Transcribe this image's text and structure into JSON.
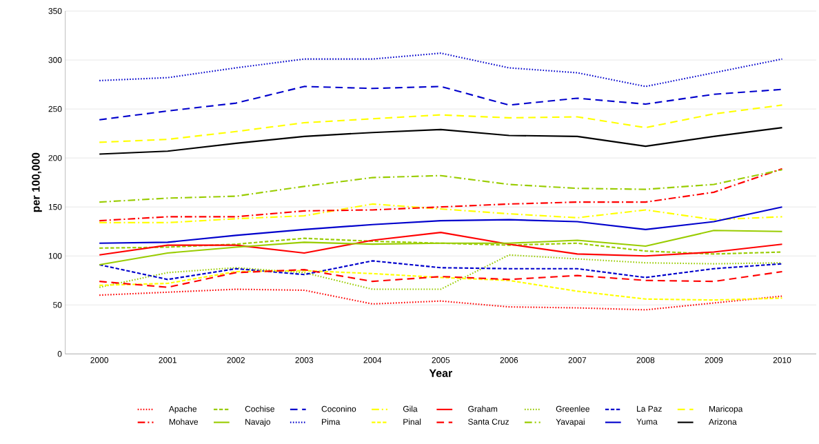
{
  "chart_data": {
    "type": "line",
    "xlabel": "Year",
    "ylabel": "per 100,000",
    "categories": [
      "2000",
      "2001",
      "2002",
      "2003",
      "2004",
      "2005",
      "2006",
      "2007",
      "2008",
      "2009",
      "2010"
    ],
    "ylim": [
      0,
      350
    ],
    "yticks": [
      0,
      50,
      100,
      150,
      200,
      250,
      300,
      350
    ],
    "grid": "y",
    "legend": "bottom",
    "marker": "none",
    "series": [
      {
        "name": "Apache",
        "color": "#ff0000",
        "line_style": "dotted",
        "values": [
          60,
          63,
          66,
          65,
          51,
          54,
          48,
          47,
          45,
          52,
          59
        ]
      },
      {
        "name": "Cochise",
        "color": "#99cc00",
        "line_style": "dashed",
        "values": [
          108,
          109,
          112,
          118,
          115,
          113,
          111,
          113,
          105,
          102,
          104
        ]
      },
      {
        "name": "Coconino",
        "color": "#0000cc",
        "line_style": "long dashed",
        "values": [
          239,
          248,
          256,
          273,
          271,
          273,
          254,
          261,
          255,
          265,
          270
        ]
      },
      {
        "name": "Gila",
        "color": "#ffff00",
        "line_style": "dash dot",
        "values": [
          134,
          134,
          138,
          141,
          153,
          148,
          143,
          139,
          147,
          137,
          140
        ]
      },
      {
        "name": "Graham",
        "color": "#ff0000",
        "line_style": "solid",
        "values": [
          101,
          111,
          111,
          103,
          116,
          124,
          112,
          102,
          100,
          104,
          112
        ]
      },
      {
        "name": "Greenlee",
        "color": "#99cc00",
        "line_style": "dotted",
        "values": [
          68,
          83,
          88,
          83,
          66,
          66,
          101,
          97,
          93,
          92,
          93
        ]
      },
      {
        "name": "La Paz",
        "color": "#0000cc",
        "line_style": "dashed",
        "values": [
          91,
          76,
          87,
          81,
          95,
          88,
          87,
          87,
          78,
          87,
          92
        ]
      },
      {
        "name": "Maricopa",
        "color": "#ffff00",
        "line_style": "long dashed",
        "values": [
          216,
          219,
          227,
          236,
          240,
          244,
          241,
          242,
          231,
          245,
          254
        ]
      },
      {
        "name": "Mohave",
        "color": "#ff0000",
        "line_style": "dash dot",
        "values": [
          136,
          140,
          140,
          146,
          147,
          150,
          153,
          155,
          155,
          165,
          189
        ]
      },
      {
        "name": "Navajo",
        "color": "#99cc00",
        "line_style": "solid",
        "values": [
          91,
          103,
          109,
          114,
          112,
          113,
          113,
          116,
          110,
          126,
          125
        ]
      },
      {
        "name": "Pima",
        "color": "#0000cc",
        "line_style": "dotted",
        "values": [
          279,
          282,
          292,
          301,
          301,
          307,
          292,
          287,
          273,
          287,
          301
        ]
      },
      {
        "name": "Pinal",
        "color": "#ffff00",
        "line_style": "dashed",
        "values": [
          70,
          72,
          84,
          85,
          82,
          78,
          75,
          64,
          56,
          55,
          57
        ]
      },
      {
        "name": "Santa Cruz",
        "color": "#ff0000",
        "line_style": "long dashed",
        "values": [
          74,
          68,
          83,
          86,
          74,
          79,
          76,
          80,
          75,
          74,
          84
        ]
      },
      {
        "name": "Yavapai",
        "color": "#99cc00",
        "line_style": "dash dot",
        "values": [
          155,
          159,
          161,
          171,
          180,
          182,
          173,
          169,
          168,
          173,
          188
        ]
      },
      {
        "name": "Yuma",
        "color": "#0000cc",
        "line_style": "solid",
        "values": [
          113,
          114,
          121,
          127,
          132,
          136,
          137,
          135,
          127,
          135,
          150
        ]
      },
      {
        "name": "Arizona",
        "color": "#000000",
        "line_style": "solid",
        "values": [
          204,
          207,
          215,
          222,
          226,
          229,
          223,
          222,
          212,
          222,
          231
        ]
      }
    ]
  }
}
